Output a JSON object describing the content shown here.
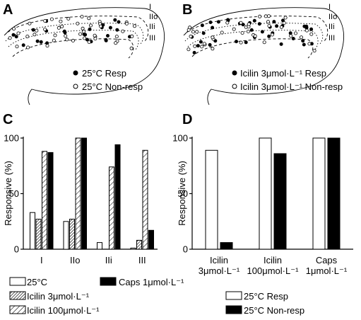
{
  "panels": {
    "A": {
      "letter": "A",
      "laminae": [
        "I",
        "IIo",
        "IIi",
        "III"
      ],
      "legend": [
        {
          "marker": "filled",
          "label": "25°C Resp"
        },
        {
          "marker": "open",
          "label": "25°C Non-resp"
        }
      ]
    },
    "B": {
      "letter": "B",
      "laminae": [
        "I",
        "IIo",
        "IIi",
        "III"
      ],
      "legend": [
        {
          "marker": "filled",
          "label": "Icilin 3μmol·L⁻¹ Resp"
        },
        {
          "marker": "open",
          "label": "Icilin 3μmol·L⁻¹ Non-resp"
        }
      ]
    },
    "C": {
      "letter": "C",
      "legend": [
        {
          "pattern": "open",
          "label": "25°C"
        },
        {
          "pattern": "solid",
          "label": "Caps 1μmol·L⁻¹"
        },
        {
          "pattern": "dense-hatch",
          "label": "Icilin 3μmol·L⁻¹"
        },
        {
          "pattern": "sparse-hatch",
          "label": "Icilin 100μmol·L⁻¹"
        }
      ]
    },
    "D": {
      "letter": "D",
      "legend": [
        {
          "pattern": "open",
          "label": "25°C Resp"
        },
        {
          "pattern": "solid",
          "label": "25°C Non-resp"
        }
      ]
    }
  },
  "colors": {
    "ink": "#000000",
    "background": "#ffffff"
  },
  "chart_data": [
    {
      "id": "C",
      "type": "bar",
      "ylabel": "Responsive (%)",
      "ylim": [
        0,
        100
      ],
      "yticks": [
        0,
        50,
        100
      ],
      "categories": [
        "I",
        "IIo",
        "IIi",
        "III"
      ],
      "series": [
        {
          "name": "25°C",
          "pattern": "open",
          "values": [
            33,
            25,
            6,
            1
          ]
        },
        {
          "name": "Icilin 3μmol·L⁻¹",
          "pattern": "dense-hatch",
          "values": [
            27,
            27,
            0,
            8
          ]
        },
        {
          "name": "Icilin 100μmol·L⁻¹",
          "pattern": "sparse-hatch",
          "values": [
            88,
            100,
            74,
            89
          ]
        },
        {
          "name": "Caps 1μmol·L⁻¹",
          "pattern": "solid",
          "values": [
            87,
            100,
            94,
            17
          ]
        }
      ]
    },
    {
      "id": "D",
      "type": "bar",
      "ylabel": "Responsive (%)",
      "ylim": [
        0,
        100
      ],
      "yticks": [
        0,
        50,
        100
      ],
      "categories": [
        "Icilin 3μmol·L⁻¹",
        "Icilin 100μmol·L⁻¹",
        "Caps 1μmol·L⁻¹"
      ],
      "category_lines": [
        [
          "Icilin",
          "3μmol·L⁻¹"
        ],
        [
          "Icilin",
          "100μmol·L⁻¹"
        ],
        [
          "Caps",
          "1μmol·L⁻¹"
        ]
      ],
      "series": [
        {
          "name": "25°C Resp",
          "pattern": "open",
          "values": [
            89,
            100,
            100
          ]
        },
        {
          "name": "25°C Non-resp",
          "pattern": "solid",
          "values": [
            6,
            86,
            100
          ]
        }
      ]
    }
  ]
}
